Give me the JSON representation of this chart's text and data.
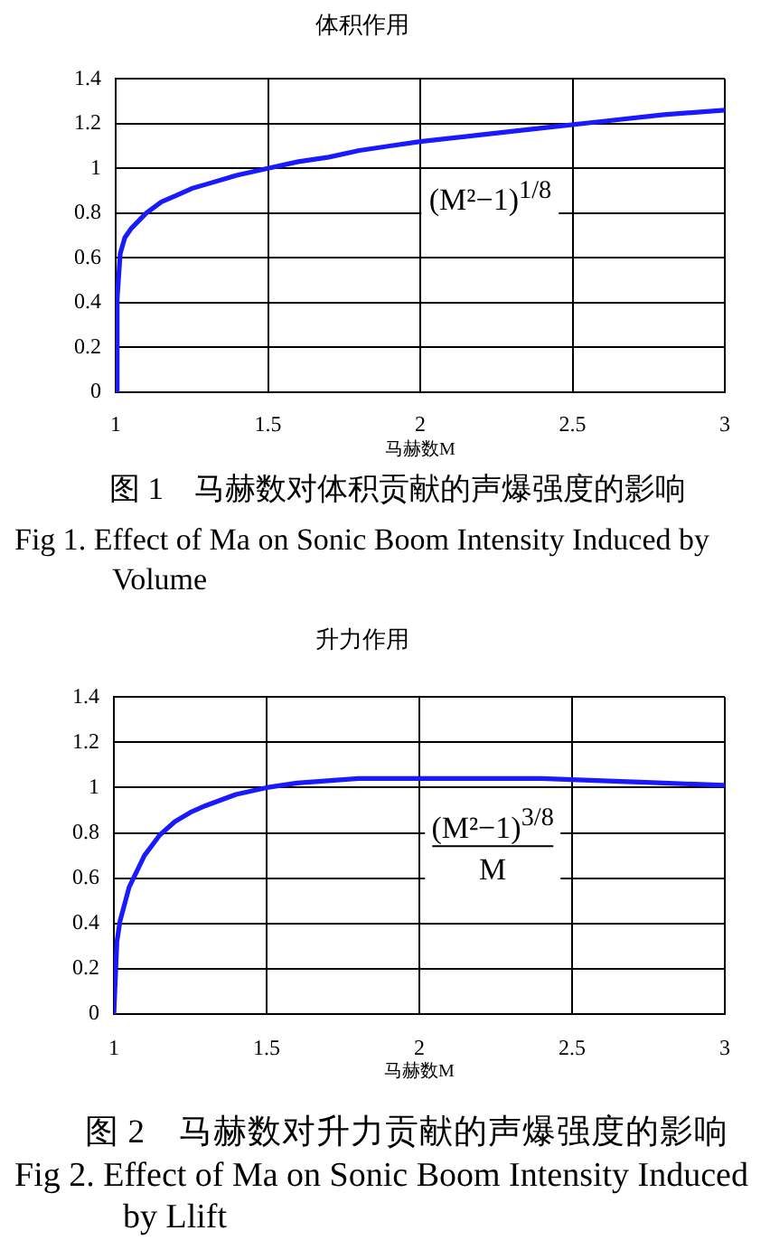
{
  "chart_data": [
    {
      "type": "line",
      "title": "体积作用",
      "xlabel": "马赫数M",
      "x": [
        1,
        1.005,
        1.015,
        1.03,
        1.05,
        1.1,
        1.15,
        1.2,
        1.25,
        1.3,
        1.4,
        1.5,
        1.6,
        1.7,
        1.8,
        1.9,
        2,
        2.2,
        2.4,
        2.6,
        2.8,
        3
      ],
      "values": [
        0,
        0.42,
        0.62,
        0.69,
        0.73,
        0.8,
        0.85,
        0.88,
        0.91,
        0.93,
        0.97,
        1.0,
        1.03,
        1.05,
        1.08,
        1.1,
        1.12,
        1.15,
        1.18,
        1.21,
        1.24,
        1.26
      ],
      "color": "#1a1aff",
      "marker": "none",
      "line_style": "solid",
      "xlim": [
        1,
        3
      ],
      "xticks": [
        1,
        1.5,
        2,
        2.5,
        3
      ],
      "ylim": [
        0,
        1.4
      ],
      "yticks": [
        0,
        0.2,
        0.4,
        0.6,
        0.8,
        1,
        1.2,
        1.4
      ],
      "grid": true,
      "annotations": [
        "(M²−1)$^{1/8}$",
        "图 1　马赫数对体积贡献的声爆强度的影响",
        "Fig 1. Effect of Ma on Sonic Boom Intensity Induced by Volume"
      ]
    },
    {
      "type": "line",
      "title": "升力作用",
      "xlabel": "马赫数M",
      "x": [
        1,
        1.01,
        1.02,
        1.05,
        1.1,
        1.15,
        1.2,
        1.25,
        1.3,
        1.4,
        1.5,
        1.6,
        1.7,
        1.8,
        1.9,
        2,
        2.2,
        2.4,
        2.6,
        2.8,
        3
      ],
      "values": [
        0,
        0.32,
        0.41,
        0.56,
        0.7,
        0.79,
        0.85,
        0.89,
        0.92,
        0.97,
        1.0,
        1.02,
        1.03,
        1.04,
        1.04,
        1.04,
        1.04,
        1.04,
        1.03,
        1.02,
        1.01
      ],
      "color": "#1a1aff",
      "marker": "none",
      "line_style": "solid",
      "xlim": [
        1,
        3
      ],
      "xticks": [
        1,
        1.5,
        2,
        2.5,
        3
      ],
      "ylim": [
        0,
        1.4
      ],
      "yticks": [
        0,
        0.2,
        0.4,
        0.6,
        0.8,
        1,
        1.2,
        1.4
      ],
      "grid": true,
      "annotations": [
        "(M²−1)$^{3/8}$\nM",
        "图 2　马赫数对升力贡献的声爆强度的影响",
        "Fig 2. Effect of Ma on Sonic Boom Intensity Induced by Llift"
      ]
    }
  ]
}
